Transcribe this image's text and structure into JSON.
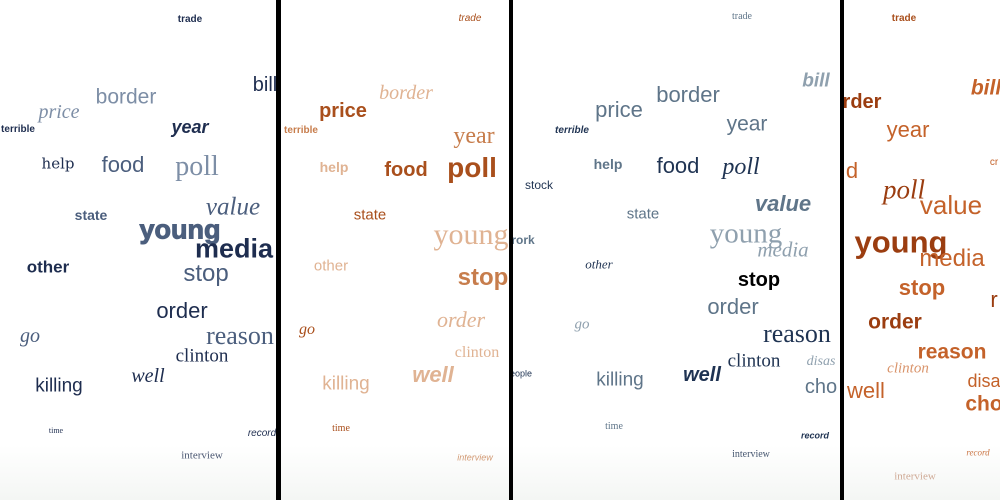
{
  "colors": {
    "p1_dark": "#1e2d4f",
    "p1_mid": "#4b5e7d",
    "p1_light": "#7d8ea6",
    "p2_dark": "#a94f1c",
    "p2_mid": "#c77d4c",
    "p2_light": "#e0b393",
    "p3_dark": "#1f3352",
    "p3_mid": "#5f7589",
    "p3_light": "#8fa0ae",
    "p3_black": "#000000",
    "p4_dark": "#9b3d10",
    "p4_mid": "#c4622a",
    "p4_light": "#d9936a"
  },
  "panel1": {
    "trade": "trade",
    "bill": "bill",
    "border": "border",
    "price": "price",
    "terrible": "terrible",
    "year": "year",
    "help": "help",
    "food": "food",
    "poll": "poll",
    "state": "state",
    "value": "value",
    "young": "young",
    "media": "media",
    "other": "other",
    "stop": "stop",
    "order": "order",
    "go": "go",
    "reason": "reason",
    "clinton": "clinton",
    "well": "well",
    "killing": "killing",
    "time": "time",
    "record": "record",
    "interview": "interview"
  },
  "panel2": {
    "trade": "trade",
    "border": "border",
    "price": "price",
    "terrible": "terrible",
    "year": "year",
    "help": "help",
    "food": "food",
    "poll": "poll",
    "state": "state",
    "young": "young",
    "other": "other",
    "stop": "stop",
    "order": "order",
    "go": "go",
    "clinton": "clinton",
    "killing": "killing",
    "well": "well",
    "time": "time",
    "interview": "interview"
  },
  "panel3": {
    "trade": "trade",
    "bill": "bill",
    "price": "price",
    "border": "border",
    "terrible": "terrible",
    "year": "year",
    "help": "help",
    "food": "food",
    "poll": "poll",
    "stock": "stock",
    "value": "value",
    "state": "state",
    "young": "young",
    "media": "media",
    "work": "rork",
    "other": "other",
    "stop": "stop",
    "order": "order",
    "go": "go",
    "reason": "reason",
    "clinton": "clinton",
    "people": "eople",
    "killing": "killing",
    "well": "well",
    "disas": "disas",
    "cho": "cho",
    "time": "time",
    "record": "record",
    "interview": "interview"
  },
  "panel4": {
    "trade": "trade",
    "order": "rder",
    "bill": "bill",
    "year": "year",
    "cr": "cr",
    "d": "d",
    "poll": "poll",
    "value": "value",
    "young": "young",
    "media": "media",
    "stop": "stop",
    "r": "r",
    "order2": "order",
    "reason": "reason",
    "clinton": "clinton",
    "well": "well",
    "disa": "disa",
    "cho": "cho",
    "record": "record",
    "interview": "interview"
  }
}
